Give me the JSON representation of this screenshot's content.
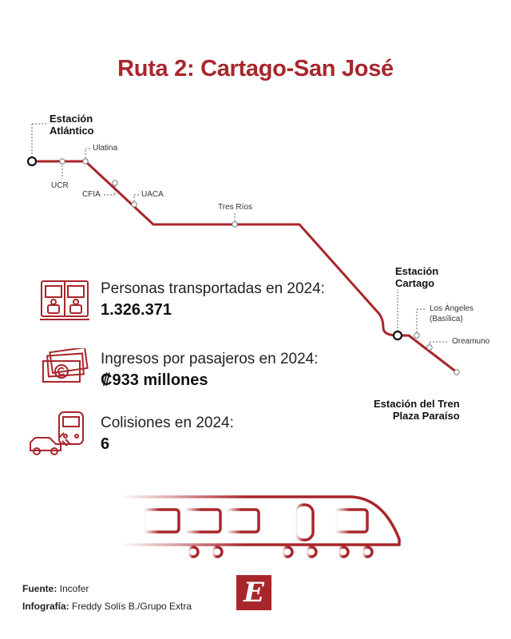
{
  "title": "Ruta 2: Cartago-San José",
  "colors": {
    "accent": "#a8262b",
    "text": "#1a1a1a"
  },
  "stations": {
    "atlantico": "Estación\nAtlántico",
    "ucr": "UCR",
    "ulatina": "Ulatina",
    "cfia": "CFIA",
    "uaca": "UACA",
    "tres_rios": "Tres Ríos",
    "cartago": "Estación\nCartago",
    "los_angeles": "Los Ángeles\n(Basílica)",
    "oreamuno": "Oreamuno",
    "paraiso": "Estación del Tren\nPlaza Paraíso"
  },
  "stats": [
    {
      "label": "Personas transportadas en 2024:",
      "value": "1.326.371",
      "icon": "passengers-icon"
    },
    {
      "label": "Ingresos por pasajeros en 2024:",
      "value": "₡933 millones",
      "icon": "money-icon"
    },
    {
      "label": "Colisiones en 2024:",
      "value": "6",
      "icon": "collision-icon"
    }
  ],
  "credits": {
    "source_label": "Fuente:",
    "source_value": " Incofer",
    "graphic_label": "Infografía:",
    "graphic_value": " Freddy Solís B./Grupo Extra"
  },
  "logo_letter": "E"
}
